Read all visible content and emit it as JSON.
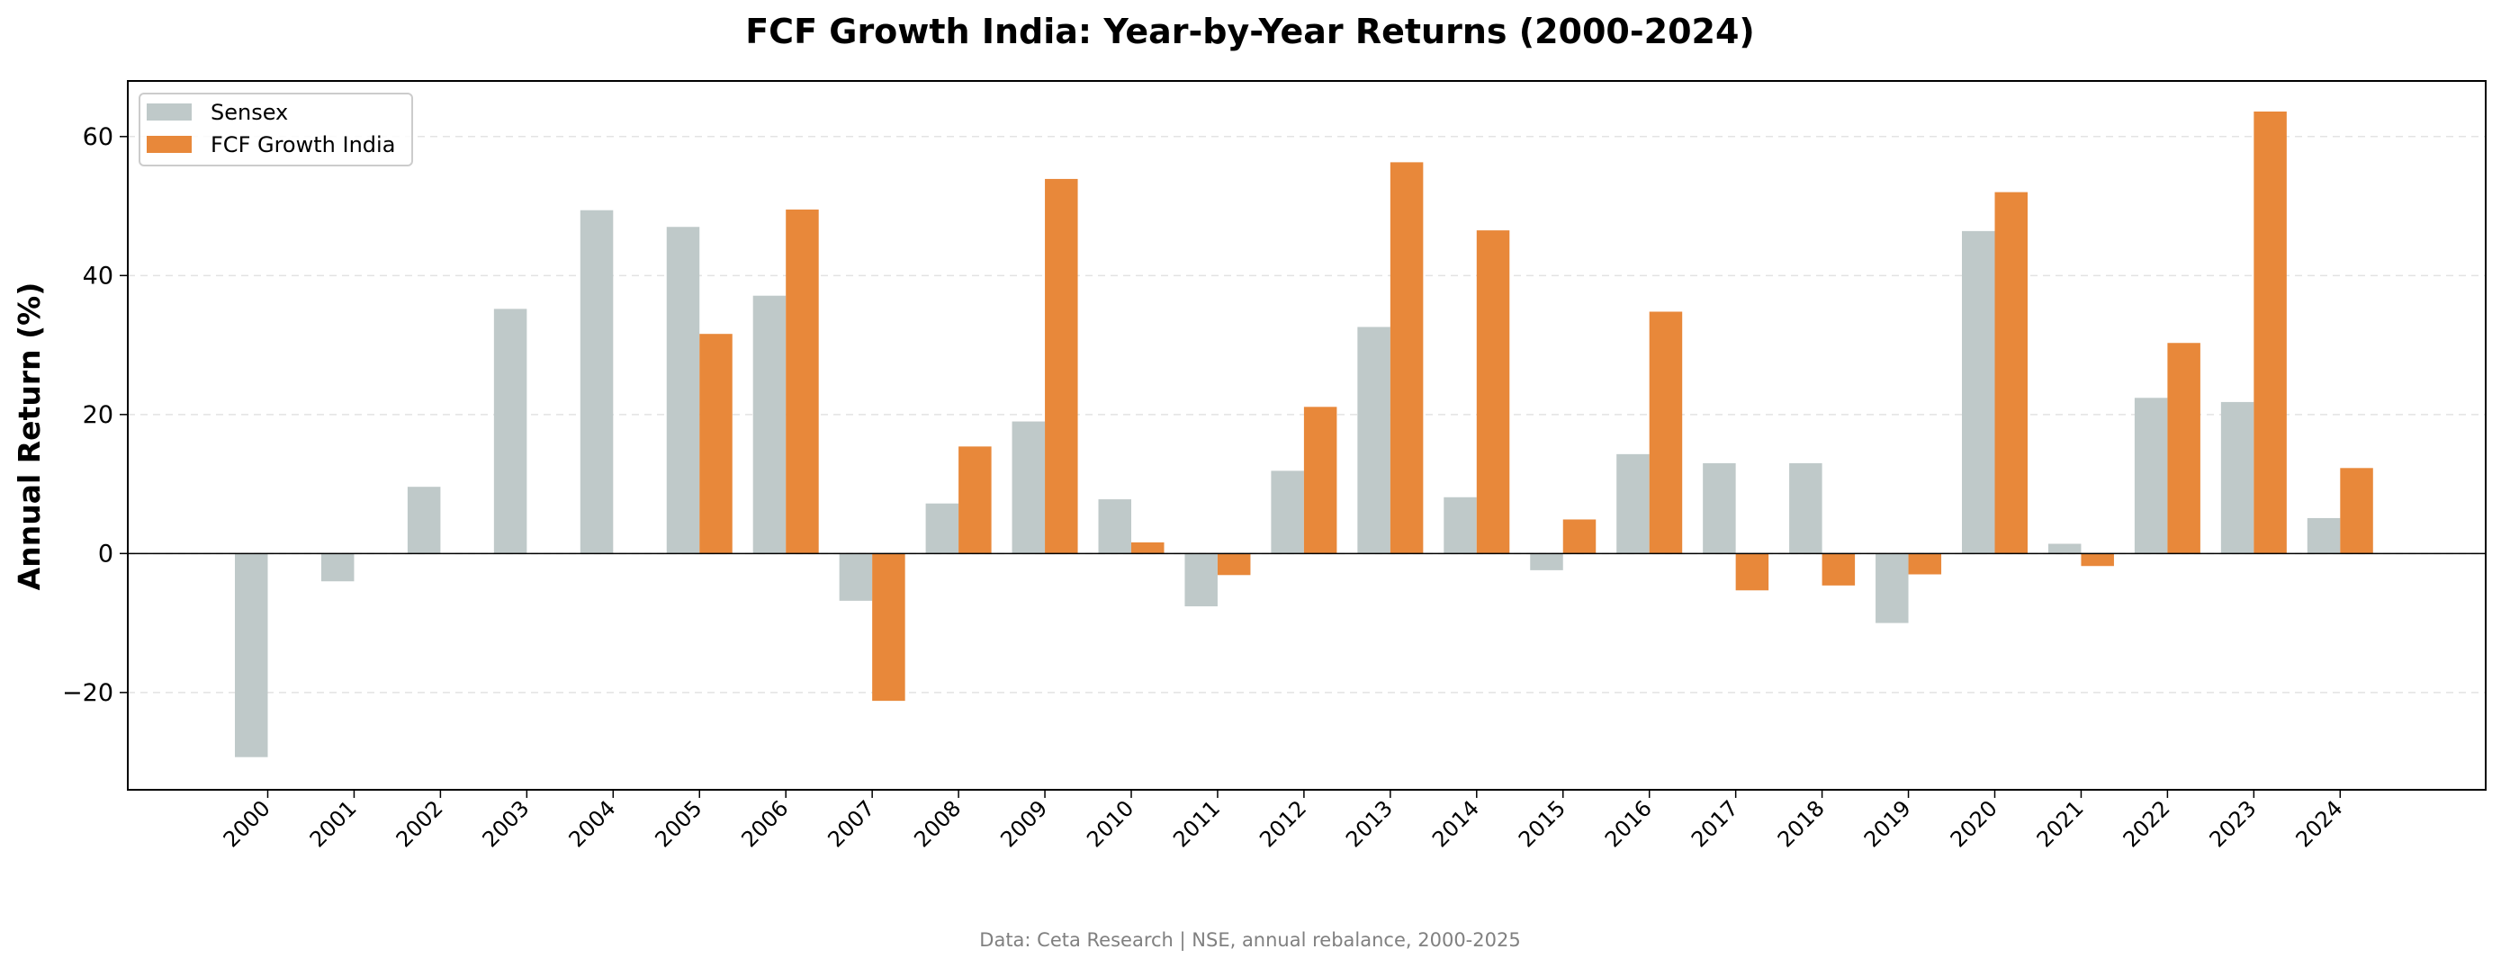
{
  "chart_data": {
    "type": "bar",
    "title": "FCF Growth India: Year-by-Year Returns (2000-2024)",
    "xlabel": "",
    "ylabel": "Annual Return (%)",
    "ylim": [
      -34,
      68
    ],
    "yticks": [
      -20,
      0,
      20,
      40,
      60
    ],
    "ytick_labels": [
      "−20",
      "0",
      "20",
      "40",
      "60"
    ],
    "grid": "horizontal dashed",
    "legend_position": "top-left",
    "categories": [
      "2000",
      "2001",
      "2002",
      "2003",
      "2004",
      "2005",
      "2006",
      "2007",
      "2008",
      "2009",
      "2010",
      "2011",
      "2012",
      "2013",
      "2014",
      "2015",
      "2016",
      "2017",
      "2018",
      "2019",
      "2020",
      "2021",
      "2022",
      "2023",
      "2024"
    ],
    "series": [
      {
        "name": "Sensex",
        "color": "#bfc9c9",
        "values": [
          -29.3,
          -4.0,
          9.6,
          35.2,
          49.4,
          47.0,
          37.1,
          -6.8,
          7.2,
          19.0,
          7.8,
          -7.6,
          11.9,
          32.6,
          8.1,
          -2.4,
          14.3,
          13.0,
          13.0,
          -10.0,
          46.4,
          1.4,
          22.4,
          21.8,
          5.1
        ]
      },
      {
        "name": "FCF Growth India",
        "color": "#e8883a",
        "values": [
          null,
          null,
          null,
          null,
          null,
          31.6,
          49.5,
          -21.2,
          15.4,
          53.9,
          1.6,
          -3.1,
          21.1,
          56.3,
          46.5,
          4.9,
          34.8,
          -5.3,
          -4.6,
          -3.0,
          52.0,
          -1.8,
          30.3,
          63.6,
          12.3
        ]
      }
    ],
    "footer": "Data: Ceta Research | NSE, annual rebalance, 2000-2025"
  }
}
